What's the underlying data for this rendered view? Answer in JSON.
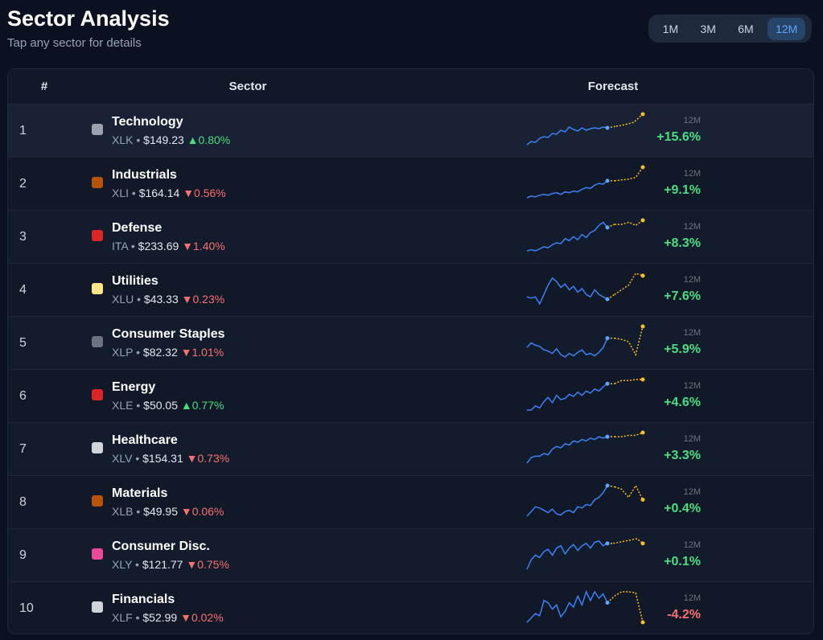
{
  "header": {
    "title": "Sector Analysis",
    "subtitle": "Tap any sector for details",
    "periods": [
      "1M",
      "3M",
      "6M",
      "12M"
    ],
    "selected_period": 3
  },
  "table": {
    "columns": [
      "#",
      "Sector",
      "Forecast"
    ],
    "rows": [
      {
        "rank": 1,
        "name": "Technology",
        "ticker": "XLK",
        "price": "$149.23",
        "change": "▲0.80%",
        "trend": "up",
        "horizon": "12M",
        "forecast": "+15.6%",
        "forecast_trend": "up",
        "icon_color": "#9ca3af",
        "history": [
          20,
          24,
          23,
          28,
          30,
          29,
          34,
          33,
          38,
          36,
          42,
          39,
          37,
          41,
          38,
          40,
          41,
          40,
          42,
          41
        ],
        "projection": [
          43,
          45,
          48,
          58
        ]
      },
      {
        "rank": 2,
        "name": "Industrials",
        "ticker": "XLI",
        "price": "$164.14",
        "change": "▼0.56%",
        "trend": "down",
        "horizon": "12M",
        "forecast": "+9.1%",
        "forecast_trend": "up",
        "icon_color": "#b45309",
        "history": [
          10,
          12,
          11,
          13,
          14,
          13,
          15,
          16,
          14,
          17,
          16,
          18,
          17,
          20,
          22,
          21,
          25,
          27,
          26,
          30
        ],
        "projection": [
          30,
          31,
          32,
          34,
          46
        ]
      },
      {
        "rank": 3,
        "name": "Defense",
        "ticker": "ITA",
        "price": "$233.69",
        "change": "▼1.40%",
        "trend": "down",
        "horizon": "12M",
        "forecast": "+8.3%",
        "forecast_trend": "up",
        "icon_color": "#dc2626",
        "history": [
          10,
          11,
          10,
          12,
          14,
          13,
          16,
          18,
          17,
          22,
          20,
          24,
          21,
          26,
          23,
          28,
          30,
          35,
          38,
          33
        ],
        "projection": [
          36,
          36,
          38,
          35,
          40
        ]
      },
      {
        "rank": 4,
        "name": "Utilities",
        "ticker": "XLU",
        "price": "$43.33",
        "change": "▼0.23%",
        "trend": "down",
        "horizon": "12M",
        "forecast": "+7.6%",
        "forecast_trend": "up",
        "icon_color": "#fde68a",
        "history": [
          20,
          19,
          20,
          14,
          22,
          30,
          36,
          33,
          28,
          31,
          26,
          29,
          24,
          27,
          22,
          20,
          26,
          22,
          20,
          18
        ],
        "projection": [
          22,
          26,
          30,
          40,
          38
        ]
      },
      {
        "rank": 5,
        "name": "Consumer Staples",
        "ticker": "XLP",
        "price": "$82.32",
        "change": "▼1.01%",
        "trend": "down",
        "horizon": "12M",
        "forecast": "+5.9%",
        "forecast_trend": "up",
        "icon_color": "#6b7280",
        "history": [
          20,
          24,
          22,
          21,
          18,
          17,
          15,
          19,
          14,
          12,
          15,
          13,
          16,
          18,
          14,
          15,
          13,
          16,
          20,
          28
        ],
        "projection": [
          28,
          27,
          25,
          14,
          38
        ]
      },
      {
        "rank": 6,
        "name": "Energy",
        "ticker": "XLE",
        "price": "$50.05",
        "change": "▲0.77%",
        "trend": "up",
        "horizon": "12M",
        "forecast": "+4.6%",
        "forecast_trend": "up",
        "icon_color": "#dc2626",
        "history": [
          10,
          10,
          14,
          12,
          18,
          22,
          17,
          24,
          20,
          21,
          25,
          23,
          27,
          24,
          28,
          26,
          30,
          28,
          32,
          35
        ],
        "projection": [
          35,
          38,
          38,
          39,
          39
        ]
      },
      {
        "rank": 7,
        "name": "Healthcare",
        "ticker": "XLV",
        "price": "$154.31",
        "change": "▼0.73%",
        "trend": "down",
        "horizon": "12M",
        "forecast": "+3.3%",
        "forecast_trend": "up",
        "icon_color": "#d1d5db",
        "history": [
          10,
          14,
          15,
          15,
          17,
          16,
          20,
          22,
          21,
          24,
          23,
          26,
          25,
          27,
          26,
          28,
          27,
          29,
          28,
          29
        ],
        "projection": [
          29,
          29,
          30,
          30,
          32
        ]
      },
      {
        "rank": 8,
        "name": "Materials",
        "ticker": "XLB",
        "price": "$49.95",
        "change": "▼0.06%",
        "trend": "down",
        "horizon": "12M",
        "forecast": "+0.4%",
        "forecast_trend": "up",
        "icon_color": "#b45309",
        "history": [
          10,
          14,
          18,
          17,
          15,
          13,
          16,
          12,
          11,
          14,
          15,
          13,
          18,
          17,
          20,
          19,
          24,
          26,
          30,
          36
        ],
        "projection": [
          35,
          33,
          26,
          36,
          24
        ]
      },
      {
        "rank": 9,
        "name": "Consumer Disc.",
        "ticker": "XLY",
        "price": "$121.77",
        "change": "▼0.75%",
        "trend": "down",
        "horizon": "12M",
        "forecast": "+0.1%",
        "forecast_trend": "up",
        "icon_color": "#ec4899",
        "history": [
          10,
          18,
          22,
          20,
          25,
          27,
          22,
          28,
          30,
          23,
          28,
          31,
          26,
          30,
          32,
          28,
          33,
          34,
          30,
          32
        ],
        "projection": [
          32,
          33,
          34,
          35,
          36,
          32
        ]
      },
      {
        "rank": 10,
        "name": "Financials",
        "ticker": "XLF",
        "price": "$52.99",
        "change": "▼0.02%",
        "trend": "down",
        "horizon": "12M",
        "forecast": "-4.2%",
        "forecast_trend": "down",
        "icon_color": "#d1d5db",
        "history": [
          10,
          14,
          18,
          16,
          30,
          28,
          22,
          26,
          15,
          20,
          28,
          24,
          34,
          26,
          38,
          30,
          38,
          32,
          36,
          28
        ],
        "projection": [
          34,
          38,
          38,
          37,
          10
        ]
      }
    ]
  }
}
